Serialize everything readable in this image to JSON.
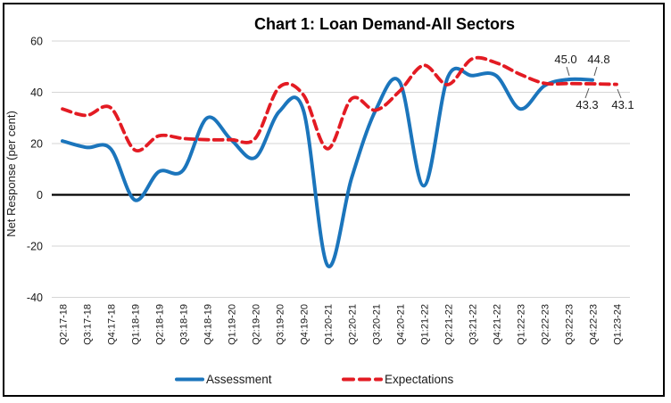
{
  "chart_data": {
    "type": "line",
    "title": "Chart 1: Loan Demand-All Sectors",
    "ylabel": "Net Response (per cent)",
    "ylim": [
      -40,
      60
    ],
    "y_ticks": [
      60,
      40,
      20,
      0,
      -20,
      -40
    ],
    "grid": true,
    "legend_position": "bottom",
    "categories": [
      "Q2:17-18",
      "Q3:17-18",
      "Q4:17-18",
      "Q1:18-19",
      "Q2:18-19",
      "Q3:18-19",
      "Q4:18-19",
      "Q1:19-20",
      "Q2:19-20",
      "Q3:19-20",
      "Q4:19-20",
      "Q1:20-21",
      "Q2:20-21",
      "Q3:20-21",
      "Q4:20-21",
      "Q1:21-22",
      "Q2:21-22",
      "Q3:21-22",
      "Q4:21-22",
      "Q1:22-23",
      "Q2:22-23",
      "Q3:22-23",
      "Q4:22-23",
      "Q1:23-24"
    ],
    "series": [
      {
        "name": "Assessment",
        "color": "#1b75bc",
        "line_style": "solid",
        "values": [
          21,
          18.5,
          18,
          -2,
          9,
          9.5,
          30,
          21.5,
          14.5,
          32.5,
          33,
          -27.5,
          6.5,
          33,
          44,
          3.5,
          46,
          46.5,
          46.5,
          33.5,
          42.5,
          45.0,
          44.8,
          null
        ]
      },
      {
        "name": "Expectations",
        "color": "#e31b23",
        "line_style": "dashed",
        "values": [
          33.5,
          31,
          34,
          17.5,
          23,
          22,
          21.5,
          21.5,
          22,
          42,
          39,
          18,
          37.5,
          33,
          40.5,
          50.5,
          43,
          53,
          51.5,
          47,
          43.5,
          43.4,
          43.3,
          43.1
        ]
      }
    ],
    "annotations": [
      {
        "text": "45.0",
        "series": "Assessment",
        "category": "Q3:22-23"
      },
      {
        "text": "44.8",
        "series": "Assessment",
        "category": "Q4:22-23"
      },
      {
        "text": "43.3",
        "series": "Expectations",
        "category": "Q4:22-23"
      },
      {
        "text": "43.1",
        "series": "Expectations",
        "category": "Q1:23-24"
      }
    ]
  }
}
